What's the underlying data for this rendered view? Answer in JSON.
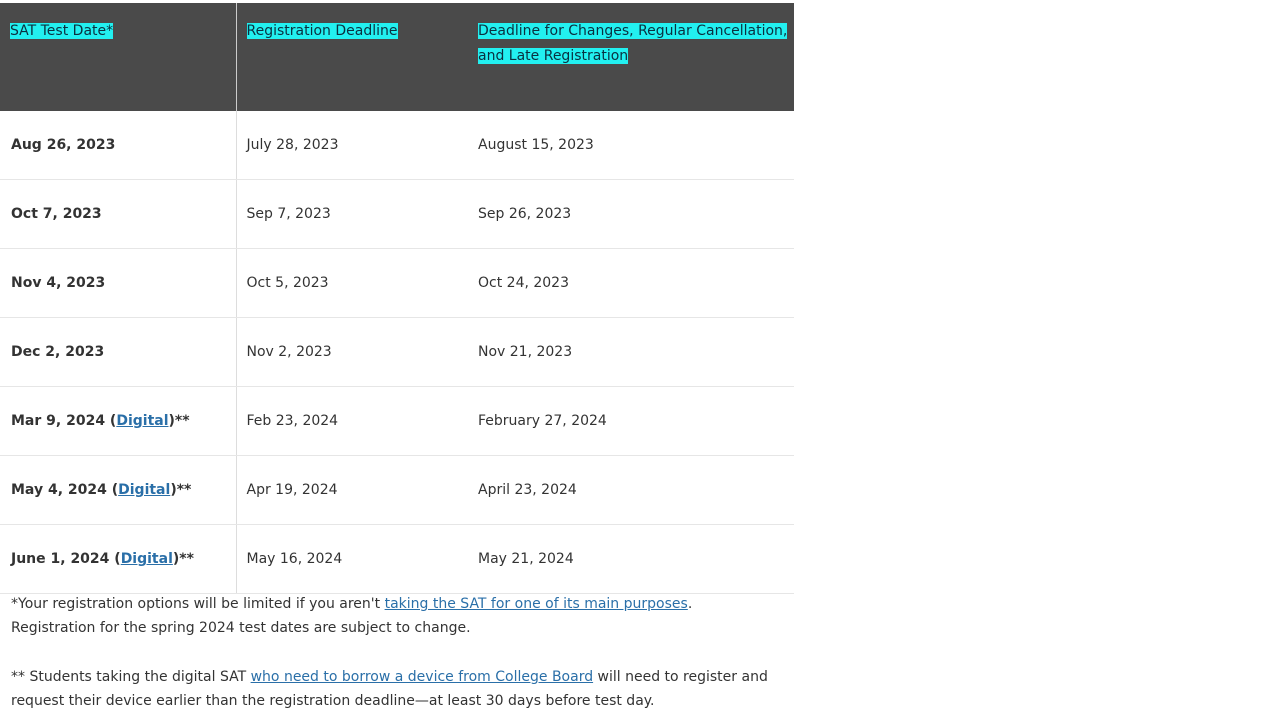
{
  "table": {
    "headers": [
      "SAT Test Date*",
      "Registration Deadline",
      "Deadline for Changes, Regular Cancellation, and Late Registration"
    ],
    "header_line1": "Deadline for Changes, Regular Cancellation,",
    "header_line2": "and Late Registration",
    "rows": [
      {
        "date": "Aug 26, 2023",
        "registration": "July 28, 2023",
        "changes": "August 15, 2023"
      },
      {
        "date": "Oct 7, 2023",
        "registration": "Sep 7, 2023",
        "changes": "Sep 26, 2023"
      },
      {
        "date": "Nov 4, 2023",
        "registration": "Oct 5, 2023",
        "changes": "Oct 24, 2023"
      },
      {
        "date": "Dec 2, 2023",
        "registration": "Nov 2, 2023",
        "changes": "Nov 21, 2023"
      },
      {
        "date": "Mar 9, 2024 (",
        "link": "Digital",
        "suffix": ")**",
        "registration": "Feb 23, 2024",
        "changes": "February 27, 2024"
      },
      {
        "date": "May 4, 2024 (",
        "link": "Digital",
        "suffix": ")**",
        "registration": "Apr 19, 2024",
        "changes": "April 23, 2024"
      },
      {
        "date": "June 1, 2024 (",
        "link": "Digital",
        "suffix": ")**",
        "registration": "May 16, 2024",
        "changes": "May 21, 2024"
      }
    ]
  },
  "notes": {
    "note1_prefix": "*Your registration options will be limited if you aren't ",
    "note1_link": "taking the SAT for one of its main purposes",
    "note1_suffix": ".",
    "note1_line2": "Registration for the spring 2024 test dates are subject to change.",
    "note2_prefix": "** Students taking the digital SAT ",
    "note2_link": "who need to borrow a device from College Board",
    "note2_suffix": " will need to register and",
    "note2_line2": "request their device earlier than the registration deadline—at least 30 days before test day."
  },
  "colors": {
    "header_bg": "#4a4a4a",
    "highlight": "#22f0f0",
    "link": "#2a6fa8"
  }
}
